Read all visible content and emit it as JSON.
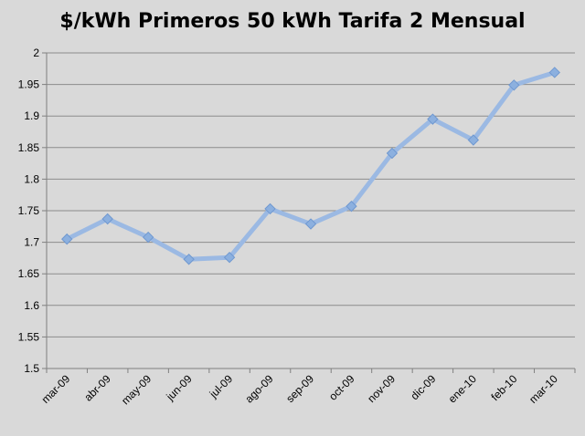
{
  "chart_data": {
    "type": "line",
    "title": "$/kWh Primeros 50 kWh Tarifa 2 Mensual",
    "xlabel": "",
    "ylabel": "",
    "categories": [
      "mar-09",
      "abr-09",
      "may-09",
      "jun-09",
      "jul-09",
      "ago-09",
      "sep-09",
      "oct-09",
      "nov-09",
      "dic-09",
      "ene-10",
      "feb-10",
      "mar-10"
    ],
    "series": [
      {
        "name": "$/kWh Primeros 50 kWh Tarifa 2 Mensual",
        "values": [
          1.705,
          1.737,
          1.708,
          1.673,
          1.676,
          1.753,
          1.729,
          1.757,
          1.841,
          1.895,
          1.862,
          1.949,
          1.969
        ]
      }
    ],
    "ylim": [
      1.5,
      2.0
    ],
    "yticks": [
      "1.5",
      "1.55",
      "1.6",
      "1.65",
      "1.7",
      "1.75",
      "1.8",
      "1.85",
      "1.9",
      "1.95",
      "2"
    ],
    "grid": true,
    "legend": "none",
    "colors": {
      "line": "#9bb9e3",
      "marker": "#8cb0df",
      "grid": "#8c8c8c",
      "background": "#d9d9d9"
    }
  }
}
